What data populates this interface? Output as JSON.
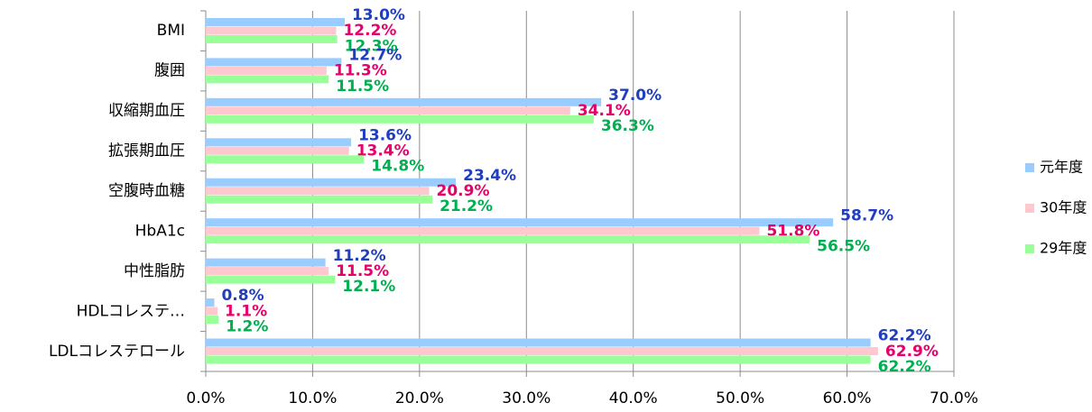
{
  "chart_data": {
    "type": "bar",
    "orientation": "horizontal",
    "categories": [
      "BMI",
      "腹囲",
      "収縮期血圧",
      "拡張期血圧",
      "空腹時血糖",
      "HbA1c",
      "中性脂肪",
      "HDLコレステ…",
      "LDLコレステロール"
    ],
    "series": [
      {
        "name": "元年度",
        "color": "#99ccff",
        "label_color": "#1f3fbf",
        "values": [
          13.0,
          12.7,
          37.0,
          13.6,
          23.4,
          58.7,
          11.2,
          0.8,
          62.2
        ],
        "value_labels": [
          "13.0%",
          "12.7%",
          "37.0%",
          "13.6%",
          "23.4%",
          "58.7%",
          "11.2%",
          "0.8%",
          "62.2%"
        ]
      },
      {
        "name": "30年度",
        "color": "#ffc7ce",
        "label_color": "#e8006a",
        "values": [
          12.2,
          11.3,
          34.1,
          13.4,
          20.9,
          51.8,
          11.5,
          1.1,
          62.9
        ],
        "value_labels": [
          "12.2%",
          "11.3%",
          "34.1%",
          "13.4%",
          "20.9%",
          "51.8%",
          "11.5%",
          "1.1%",
          "62.9%"
        ]
      },
      {
        "name": "29年度",
        "color": "#99ff99",
        "label_color": "#00b050",
        "values": [
          12.3,
          11.5,
          36.3,
          14.8,
          21.2,
          56.5,
          12.1,
          1.2,
          62.2
        ],
        "value_labels": [
          "12.3%",
          "11.5%",
          "36.3%",
          "14.8%",
          "21.2%",
          "56.5%",
          "12.1%",
          "1.2%",
          "62.2%"
        ]
      }
    ],
    "xlim": [
      0,
      70
    ],
    "xticks": [
      {
        "value": 0,
        "label": "0.0%"
      },
      {
        "value": 10,
        "label": "10.0%"
      },
      {
        "value": 20,
        "label": "20.0%"
      },
      {
        "value": 30,
        "label": "30.0%"
      },
      {
        "value": 40,
        "label": "40.0%"
      },
      {
        "value": 50,
        "label": "50.0%"
      },
      {
        "value": 60,
        "label": "60.0%"
      },
      {
        "value": 70,
        "label": "70.0%"
      }
    ],
    "grid": true,
    "legend": "right"
  }
}
